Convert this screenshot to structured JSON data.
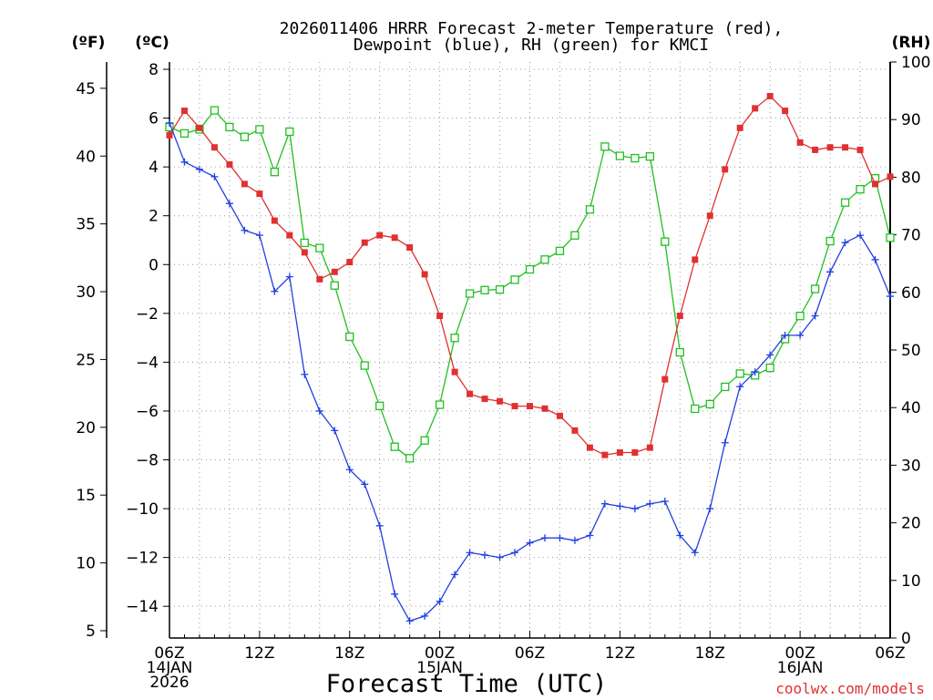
{
  "chart_data": {
    "type": "line",
    "title": "2026011406 HRRR Forecast 2-meter Temperature (red),",
    "subtitle": "Dewpoint (blue), RH (green) for KMCI",
    "xlabel": "Forecast Time (UTC)",
    "credit": "coolwx.com/models",
    "units": {
      "fahrenheit": "(ºF)",
      "celsius": "(ºC)",
      "rh": "(RH)"
    },
    "x_range": [
      0,
      48
    ],
    "celsius_range": [
      -15.3,
      8.3
    ],
    "rh_range": [
      0,
      100
    ],
    "x_ticks": [
      {
        "hour": 0,
        "line1": "06Z",
        "line2": "14JAN",
        "line3": "2026"
      },
      {
        "hour": 6,
        "line1": "12Z",
        "line2": "",
        "line3": ""
      },
      {
        "hour": 12,
        "line1": "18Z",
        "line2": "",
        "line3": ""
      },
      {
        "hour": 18,
        "line1": "00Z",
        "line2": "15JAN",
        "line3": ""
      },
      {
        "hour": 24,
        "line1": "06Z",
        "line2": "",
        "line3": ""
      },
      {
        "hour": 30,
        "line1": "12Z",
        "line2": "",
        "line3": ""
      },
      {
        "hour": 36,
        "line1": "18Z",
        "line2": "",
        "line3": ""
      },
      {
        "hour": 42,
        "line1": "00Z",
        "line2": "16JAN",
        "line3": ""
      },
      {
        "hour": 48,
        "line1": "06Z",
        "line2": "",
        "line3": ""
      }
    ],
    "celsius_ticks": [
      "8",
      "6",
      "4",
      "2",
      "0",
      "−2",
      "−4",
      "−6",
      "−8",
      "−10",
      "−12",
      "−14"
    ],
    "fahrenheit_ticks": [
      "45",
      "40",
      "35",
      "30",
      "25",
      "20",
      "15",
      "10",
      "5"
    ],
    "rh_ticks": [
      "100",
      "90",
      "80",
      "70",
      "60",
      "50",
      "40",
      "30",
      "20",
      "10",
      "0"
    ],
    "series": [
      {
        "name": "2-meter Temperature",
        "color": "#e03030",
        "marker": "filled-square",
        "values": [
          5.3,
          6.3,
          5.6,
          4.8,
          4.1,
          3.3,
          2.9,
          1.8,
          1.2,
          0.5,
          -0.6,
          -0.3,
          0.1,
          0.9,
          1.2,
          1.1,
          0.7,
          -0.4,
          -2.1,
          -4.4,
          -5.3,
          -5.5,
          -5.6,
          -5.8,
          -5.8,
          -5.9,
          -6.2,
          -6.8,
          -7.5,
          -7.8,
          -7.7,
          -7.7,
          -7.5,
          -4.7,
          -2.1,
          0.2,
          2.0,
          3.9,
          5.6,
          6.4,
          6.9,
          6.3,
          5.0,
          4.7,
          4.8,
          4.8,
          4.7,
          3.3,
          3.6
        ]
      },
      {
        "name": "Dewpoint",
        "color": "#2040e0",
        "marker": "plus",
        "values": [
          5.8,
          4.2,
          3.9,
          3.6,
          2.5,
          1.4,
          1.2,
          -1.1,
          -0.5,
          -4.5,
          -6.0,
          -6.8,
          -8.4,
          -9.0,
          -10.7,
          -13.5,
          -14.6,
          -14.4,
          -13.8,
          -12.7,
          -11.8,
          -11.9,
          -12.0,
          -11.8,
          -11.4,
          -11.2,
          -11.2,
          -11.3,
          -11.1,
          -9.8,
          -9.9,
          -10.0,
          -9.8,
          -9.7,
          -11.1,
          -11.8,
          -10.0,
          -7.3,
          -5.0,
          -4.4,
          -3.7,
          -2.9,
          -2.9,
          -2.1,
          -0.3,
          0.9,
          1.2,
          0.2,
          -1.3
        ]
      },
      {
        "name": "RH",
        "color": "#20c020",
        "marker": "open-square",
        "values": [
          88.7,
          87.6,
          88.3,
          91.6,
          88.7,
          87.0,
          88.3,
          80.9,
          87.9,
          68.6,
          67.7,
          61.2,
          52.3,
          47.3,
          40.3,
          33.2,
          31.2,
          34.3,
          40.5,
          52.1,
          59.8,
          60.4,
          60.5,
          62.2,
          64.0,
          65.7,
          67.2,
          69.9,
          74.4,
          85.3,
          83.7,
          83.3,
          83.6,
          68.8,
          49.6,
          39.8,
          40.6,
          43.6,
          45.9,
          45.6,
          46.9,
          51.9,
          55.9,
          60.6,
          68.9,
          75.6,
          77.9,
          79.8,
          69.5
        ]
      }
    ]
  }
}
